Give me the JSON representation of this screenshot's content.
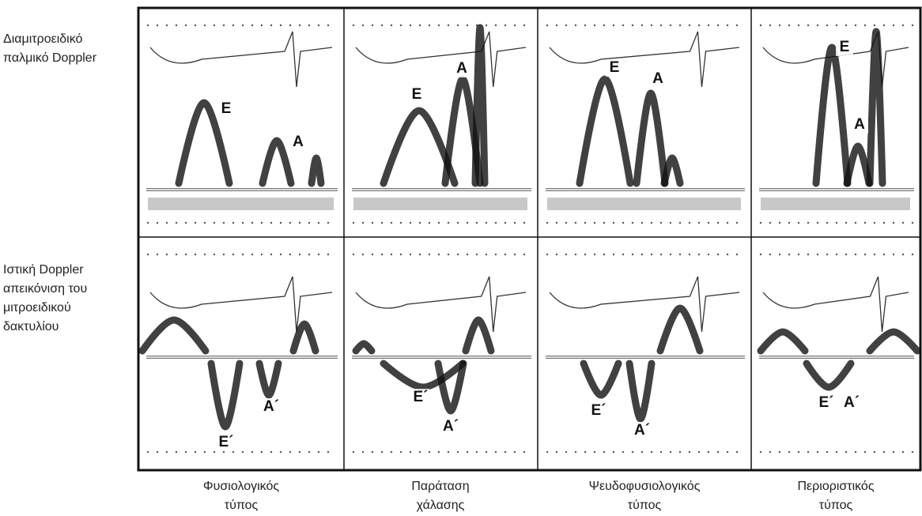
{
  "row_labels": [
    [
      "Διαμιτροειδικό",
      "παλμικό Doppler"
    ],
    [
      "Ιστική Doppler",
      "απεικόνιση του",
      "μιτροειδικού",
      "δακτυλίου"
    ]
  ],
  "column_labels": [
    [
      "Φυσιολογικός",
      "τύπος"
    ],
    [
      "Παράταση",
      "χάλασης"
    ],
    [
      "Ψευδοφυσιολογικός",
      "τύπος"
    ],
    [
      "Περιοριστικός",
      "τύπος"
    ]
  ],
  "panels": [
    {
      "labels": [
        "E",
        "A"
      ]
    },
    {
      "labels": [
        "E",
        "A"
      ]
    },
    {
      "labels": [
        "E",
        "A"
      ]
    },
    {
      "labels": [
        "E",
        "A"
      ]
    },
    {
      "labels": [
        "A´",
        "E´"
      ]
    },
    {
      "labels": [
        "E´",
        "A´"
      ]
    },
    {
      "labels": [
        "E´",
        "A´"
      ]
    },
    {
      "labels": [
        "E´",
        "A´"
      ]
    }
  ]
}
